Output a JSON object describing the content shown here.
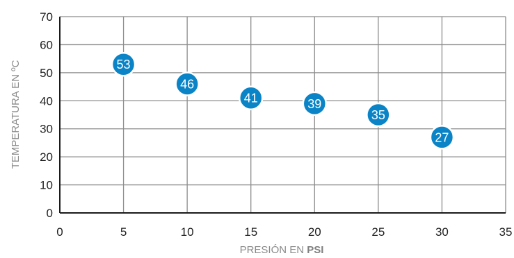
{
  "chart_data": {
    "type": "scatter",
    "title": "",
    "xlabel_main": "PRESIÓN EN ",
    "xlabel_unit": "PSI",
    "ylabel": "TEMPERATURA EN ºC",
    "xlim": [
      0,
      35
    ],
    "ylim": [
      0,
      70
    ],
    "x_ticks": [
      0,
      5,
      10,
      15,
      20,
      25,
      30,
      35
    ],
    "y_ticks": [
      0,
      10,
      20,
      30,
      40,
      50,
      60,
      70
    ],
    "grid": true,
    "marker_color": "#0a84c6",
    "marker_edge_color": "#ffffff",
    "series": [
      {
        "x": [
          5,
          10,
          15,
          20,
          25,
          30
        ],
        "y": [
          53,
          46,
          41,
          39,
          35,
          27
        ],
        "labels": [
          "53",
          "46",
          "41",
          "39",
          "35",
          "27"
        ]
      }
    ]
  }
}
